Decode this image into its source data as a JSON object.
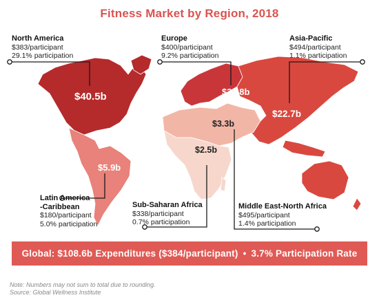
{
  "chart_data": {
    "type": "map",
    "title": "Fitness Market by Region, 2018",
    "regions": [
      {
        "key": "north_america",
        "name": "North America",
        "expenditure": "$40.5b",
        "value_b": 40.5,
        "per_participant": "$383/participant",
        "participation": "29.1% participation",
        "color": "#b52a2b"
      },
      {
        "key": "europe",
        "name": "Europe",
        "expenditure": "$33.8b",
        "value_b": 33.8,
        "per_participant": "$400/participant",
        "participation": "9.2% participation",
        "color": "#c9363a"
      },
      {
        "key": "asia_pacific",
        "name": "Asia-Pacific",
        "expenditure": "$22.7b",
        "value_b": 22.7,
        "per_participant": "$494/participant",
        "participation": "1.1% participation",
        "color": "#d9483f"
      },
      {
        "key": "latin_america",
        "name": "Latin America\n-Caribbean",
        "expenditure": "$5.9b",
        "value_b": 5.9,
        "per_participant": "$180/participant",
        "participation": "5.0% participation",
        "color": "#e8827a"
      },
      {
        "key": "sub_saharan_africa",
        "name": "Sub-Saharan Africa",
        "expenditure": "$2.5b",
        "value_b": 2.5,
        "per_participant": "$338/participant",
        "participation": "0.7% participation",
        "color": "#f7d7cc"
      },
      {
        "key": "mena",
        "name": "Middle East-North Africa",
        "expenditure": "$3.3b",
        "value_b": 3.3,
        "per_participant": "$495/participant",
        "participation": "1.4% participation",
        "color": "#f2b6a6"
      }
    ]
  },
  "banner": {
    "global": "Global: $108.6b Expenditures ($384/participant)",
    "bullet": "•",
    "rate": "3.7% Participation Rate"
  },
  "footnote": {
    "note": "Note: Numbers may not sum to total due to rounding.",
    "source": "Source: Global Wellness Institute"
  },
  "colors": {
    "title": "#d9534f",
    "banner": "#e05a55",
    "leader_line": "#1a1a1a"
  }
}
